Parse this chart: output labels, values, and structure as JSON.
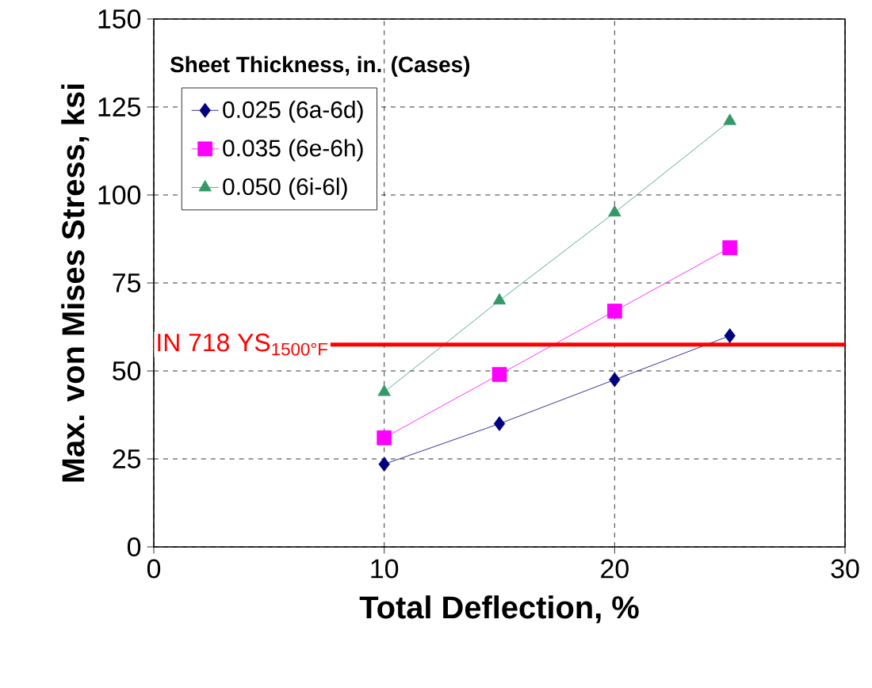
{
  "chart_data": {
    "type": "line",
    "xlabel": "Total Deflection, %",
    "ylabel": "Max. von Mises Stress, ksi",
    "legend_title": "Sheet Thickness, in. (Cases)",
    "x": [
      10,
      15,
      20,
      25
    ],
    "series": [
      {
        "name": "0.025 (6a-6d)",
        "color": "#000080",
        "marker": "diamond",
        "values": [
          23.5,
          35,
          47.5,
          60
        ]
      },
      {
        "name": "0.035 (6e-6h)",
        "color": "#ff00ff",
        "marker": "square",
        "values": [
          31,
          49,
          67,
          85
        ]
      },
      {
        "name": "0.050 (6i-6l)",
        "color": "#339966",
        "marker": "triangle",
        "values": [
          44,
          70,
          95,
          121
        ]
      }
    ],
    "xlim": [
      0,
      30
    ],
    "xticks": [
      0,
      10,
      20,
      30
    ],
    "ylim": [
      0,
      150
    ],
    "yticks": [
      0,
      25,
      50,
      75,
      100,
      125,
      150
    ],
    "grid": true,
    "legend": "top left",
    "line_style": "solid",
    "ref_lines": [
      {
        "axis": "y",
        "value": 57.5,
        "label": "IN 718 YS$_{1500°F}$",
        "color": "#ff0000"
      }
    ]
  }
}
